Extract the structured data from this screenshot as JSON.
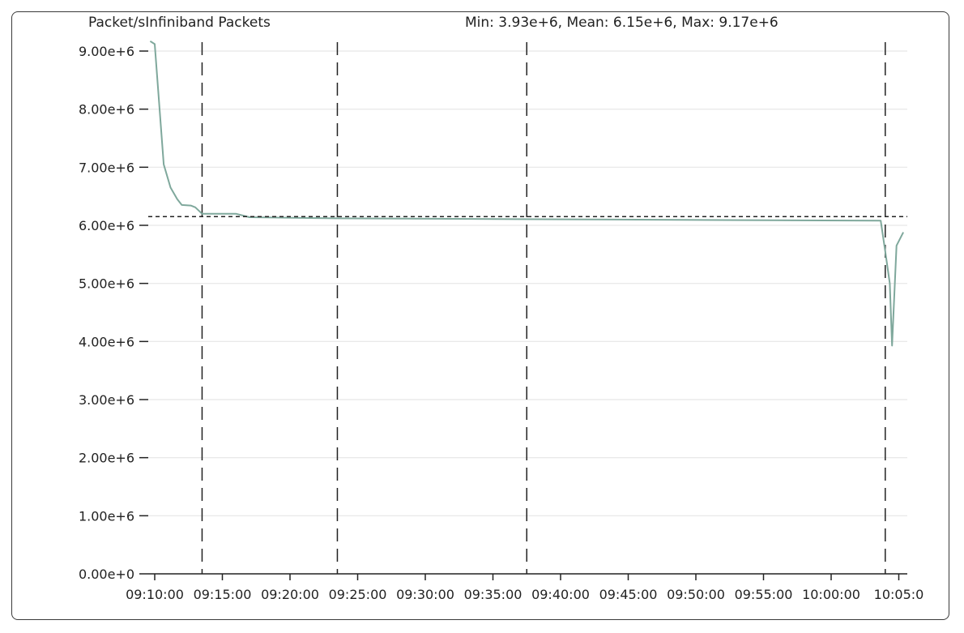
{
  "panel": {
    "title": "Packet/sInfiniband Packets",
    "stats": "Min: 3.93e+6, Mean: 6.15e+6, Max: 9.17e+6"
  },
  "chart_data": {
    "type": "line",
    "title": "Packet/sInfiniband Packets",
    "xlabel": "",
    "ylabel": "",
    "x_unit": "time",
    "ylim": [
      0,
      9170000
    ],
    "grid": true,
    "y_ticks": [
      "0.00e+0",
      "1.00e+6",
      "2.00e+6",
      "3.00e+6",
      "4.00e+6",
      "5.00e+6",
      "6.00e+6",
      "7.00e+6",
      "8.00e+6",
      "9.00e+6"
    ],
    "x_ticks": [
      "09:10:00",
      "09:15:00",
      "09:20:00",
      "09:25:00",
      "09:30:00",
      "09:35:00",
      "09:40:00",
      "09:45:00",
      "09:50:00",
      "09:55:00",
      "10:00:00",
      "10:05:0"
    ],
    "stats": {
      "min": 3930000,
      "mean": 6150000,
      "max": 9170000
    },
    "event_lines": [
      "09:13:30",
      "09:23:30",
      "09:37:30",
      "10:04:00"
    ],
    "series": [
      {
        "color": "#7fa89c",
        "points": [
          [
            "09:09:40",
            9170000
          ],
          [
            "09:10:00",
            9120000
          ],
          [
            "09:10:40",
            7050000
          ],
          [
            "09:11:10",
            6650000
          ],
          [
            "09:11:40",
            6450000
          ],
          [
            "09:12:00",
            6350000
          ],
          [
            "09:12:40",
            6340000
          ],
          [
            "09:13:00",
            6310000
          ],
          [
            "09:13:30",
            6200000
          ],
          [
            "09:16:00",
            6200000
          ],
          [
            "09:17:00",
            6140000
          ],
          [
            "09:23:30",
            6120000
          ],
          [
            "10:03:40",
            6080000
          ],
          [
            "10:04:00",
            5550000
          ],
          [
            "10:04:20",
            5000000
          ],
          [
            "10:04:30",
            3930000
          ],
          [
            "10:04:50",
            5650000
          ],
          [
            "10:05:20",
            5880000
          ]
        ]
      }
    ]
  }
}
